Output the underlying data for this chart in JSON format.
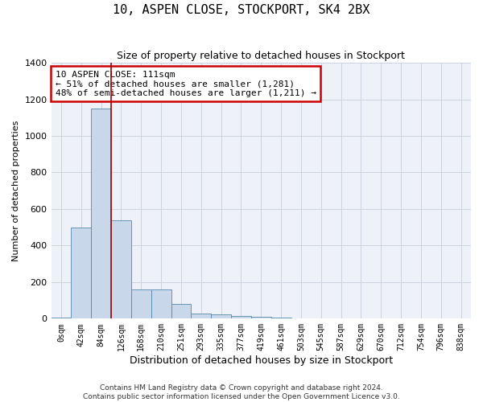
{
  "title": "10, ASPEN CLOSE, STOCKPORT, SK4 2BX",
  "subtitle": "Size of property relative to detached houses in Stockport",
  "xlabel": "Distribution of detached houses by size in Stockport",
  "ylabel": "Number of detached properties",
  "footer_line1": "Contains HM Land Registry data © Crown copyright and database right 2024.",
  "footer_line2": "Contains public sector information licensed under the Open Government Licence v3.0.",
  "bin_labels": [
    "0sqm",
    "42sqm",
    "84sqm",
    "126sqm",
    "168sqm",
    "210sqm",
    "251sqm",
    "293sqm",
    "335sqm",
    "377sqm",
    "419sqm",
    "461sqm",
    "503sqm",
    "545sqm",
    "587sqm",
    "629sqm",
    "670sqm",
    "712sqm",
    "754sqm",
    "796sqm",
    "838sqm"
  ],
  "bar_values": [
    4,
    500,
    1150,
    540,
    160,
    160,
    80,
    30,
    22,
    15,
    10,
    4,
    0,
    0,
    0,
    0,
    0,
    0,
    0,
    0,
    0
  ],
  "bar_color": "#c8d8ea",
  "bar_edge_color": "#5588aa",
  "grid_color": "#ccd4e0",
  "background_color": "#eef2f8",
  "vline_color": "#aa0000",
  "annotation_text": "10 ASPEN CLOSE: 111sqm\n← 51% of detached houses are smaller (1,281)\n48% of semi-detached houses are larger (1,211) →",
  "annotation_box_color": "#cc0000",
  "annotation_bg": "#ffffff",
  "ylim": [
    0,
    1400
  ],
  "yticks": [
    0,
    200,
    400,
    600,
    800,
    1000,
    1200,
    1400
  ],
  "figsize": [
    6.0,
    5.0
  ],
  "dpi": 100
}
